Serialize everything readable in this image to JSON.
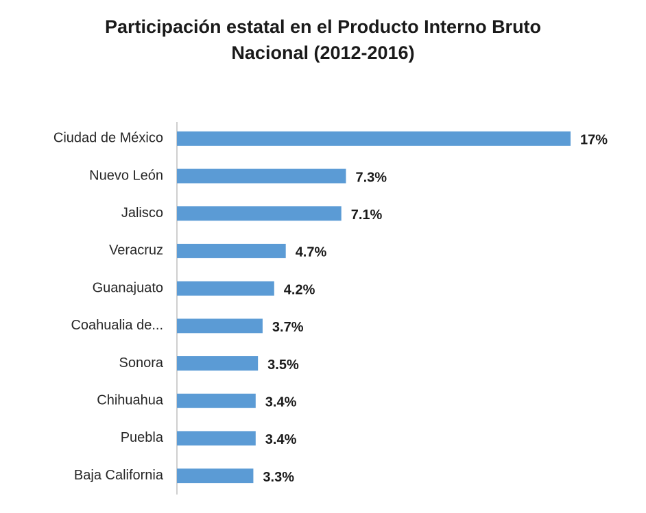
{
  "chart_data": {
    "type": "bar",
    "orientation": "horizontal",
    "title": "Participación estatal en el Producto Interno Bruto Nacional (2012-2016)",
    "categories": [
      "Ciudad de México",
      "Nuevo León",
      "Jalisco",
      "Veracruz",
      "Guanajuato",
      "Coahualia de...",
      "Sonora",
      "Chihuahua",
      "Puebla",
      "Baja California"
    ],
    "values": [
      17,
      7.3,
      7.1,
      4.7,
      4.2,
      3.7,
      3.5,
      3.4,
      3.4,
      3.3
    ],
    "value_labels": [
      "17%",
      "7.3%",
      "7.1%",
      "4.7%",
      "4.2%",
      "3.7%",
      "3.5%",
      "3.4%",
      "3.4%",
      "3.3%"
    ],
    "color": "#5b9bd5"
  }
}
